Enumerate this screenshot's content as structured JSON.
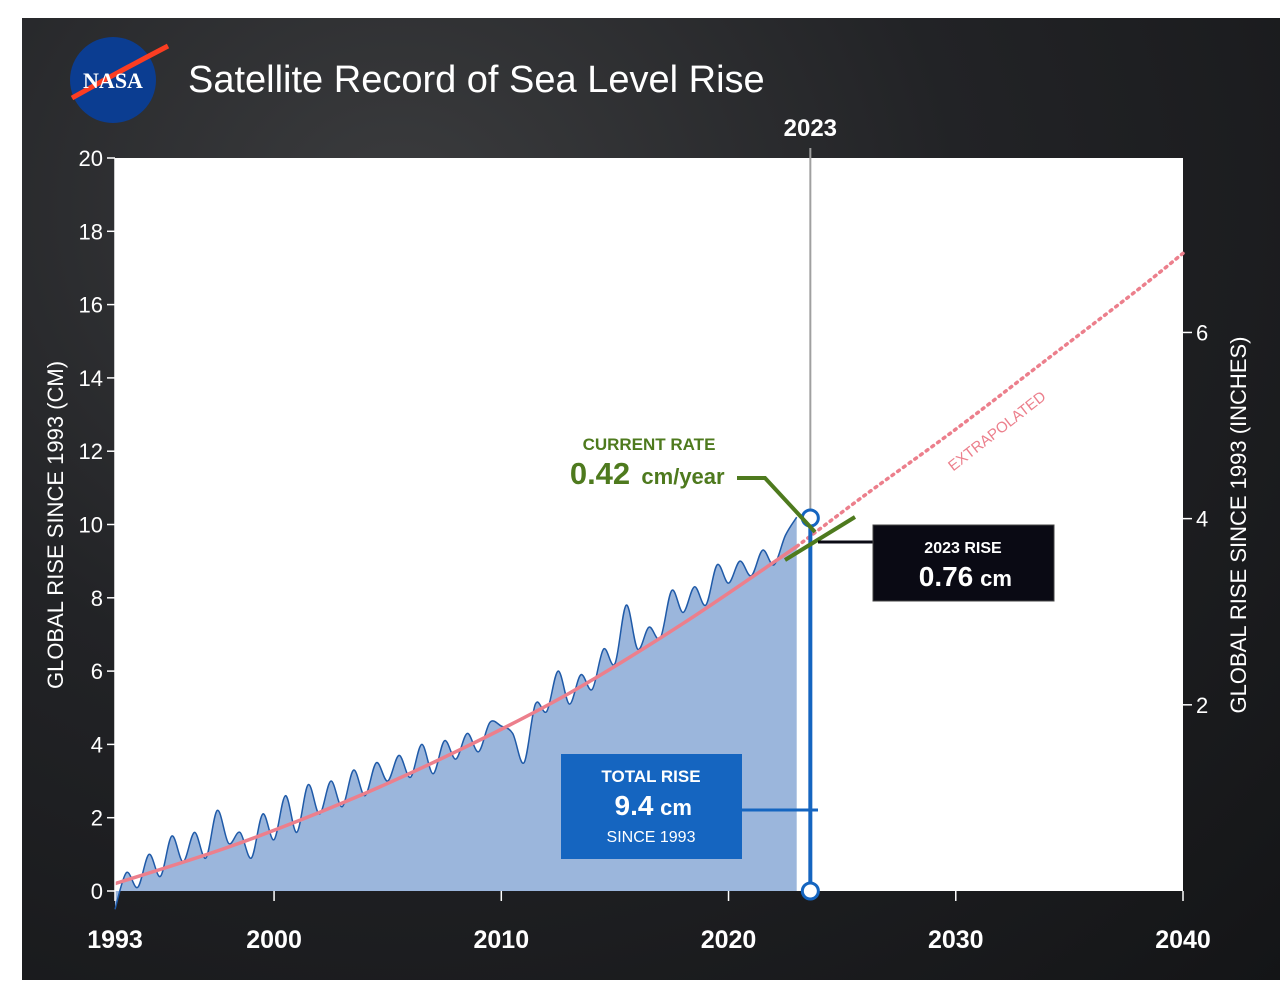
{
  "header": {
    "logo_text": "NASA",
    "title": "Satellite Record of Sea Level Rise"
  },
  "colors": {
    "background": "#1c1d1f",
    "plot_area": "#ffffff",
    "observed_fill": "#9bb6dc",
    "observed_line": "#1f5aa8",
    "trend_line": "#ec7f8c",
    "rate_line": "#4e7a1e",
    "total_box": "#1565c0",
    "rise_box": "#0a0a14",
    "marker_line": "#999999"
  },
  "chart_data": {
    "type": "area",
    "title": "Satellite Record of Sea Level Rise",
    "xlabel": "",
    "ylabel": "GLOBAL RISE SINCE 1993 (CM)",
    "ylabel_right": "GLOBAL RISE SINCE 1993 (INCHES)",
    "xlim": [
      1993,
      2040
    ],
    "ylim": [
      0,
      20
    ],
    "ylim_right_inches": [
      0,
      7.874
    ],
    "x_ticks": [
      "1993",
      "2000",
      "2010",
      "2020",
      "2030",
      "2040"
    ],
    "x_tick_values": [
      1993,
      2000,
      2010,
      2020,
      2030,
      2040
    ],
    "y_ticks": [
      "0",
      "2",
      "4",
      "6",
      "8",
      "10",
      "12",
      "14",
      "16",
      "18",
      "20"
    ],
    "y_tick_values": [
      0,
      2,
      4,
      6,
      8,
      10,
      12,
      14,
      16,
      18,
      20
    ],
    "y_right_ticks": [
      "2",
      "4",
      "6"
    ],
    "y_right_tick_values": [
      2,
      4,
      6
    ],
    "grid": false,
    "marker_year": 2023,
    "marker_label": "2023",
    "series": [
      {
        "name": "",
        "type": "area",
        "x": [
          1993.0,
          1993.5,
          1994.0,
          1994.5,
          1995.0,
          1995.5,
          1996.0,
          1996.5,
          1997.0,
          1997.5,
          1998.0,
          1998.5,
          1999.0,
          1999.5,
          2000.0,
          2000.5,
          2001.0,
          2001.5,
          2002.0,
          2002.5,
          2003.0,
          2003.5,
          2004.0,
          2004.5,
          2005.0,
          2005.5,
          2006.0,
          2006.5,
          2007.0,
          2007.5,
          2008.0,
          2008.5,
          2009.0,
          2009.5,
          2010.0,
          2010.5,
          2011.0,
          2011.5,
          2012.0,
          2012.5,
          2013.0,
          2013.5,
          2014.0,
          2014.5,
          2015.0,
          2015.5,
          2016.0,
          2016.5,
          2017.0,
          2017.5,
          2018.0,
          2018.5,
          2019.0,
          2019.5,
          2020.0,
          2020.5,
          2021.0,
          2021.5,
          2022.0,
          2022.5,
          2023.0
        ],
        "y": [
          -0.5,
          0.5,
          0.1,
          1.0,
          0.4,
          1.5,
          0.8,
          1.6,
          0.9,
          2.2,
          1.3,
          1.6,
          0.9,
          2.1,
          1.4,
          2.6,
          1.6,
          2.9,
          2.1,
          3.0,
          2.3,
          3.3,
          2.6,
          3.5,
          3.0,
          3.7,
          3.1,
          4.0,
          3.2,
          4.1,
          3.6,
          4.3,
          3.8,
          4.6,
          4.5,
          4.3,
          3.5,
          5.1,
          4.9,
          6.0,
          5.1,
          5.9,
          5.5,
          6.6,
          6.2,
          7.8,
          6.6,
          7.2,
          6.9,
          8.2,
          7.6,
          8.3,
          7.8,
          8.9,
          8.4,
          9.0,
          8.6,
          9.3,
          8.9,
          9.7,
          10.2
        ]
      },
      {
        "name": "",
        "type": "line",
        "x": [
          1993,
          1998,
          2003,
          2008,
          2013,
          2018,
          2023
        ],
        "y": [
          0.2,
          1.2,
          2.4,
          3.8,
          5.4,
          7.3,
          9.4
        ]
      },
      {
        "name": "",
        "label": "EXTRAPOLATED",
        "type": "line-dotted",
        "x": [
          2023,
          2026,
          2030,
          2034,
          2038,
          2040
        ],
        "y": [
          9.4,
          10.8,
          12.6,
          14.5,
          16.4,
          17.4
        ]
      }
    ],
    "annotations": {
      "current_rate_title": "CURRENT RATE",
      "current_rate_value": "0.42",
      "current_rate_unit": "cm/year",
      "rise_2023_title": "2023 RISE",
      "rise_2023_value": "0.76",
      "rise_2023_unit": "cm",
      "total_title": "TOTAL RISE",
      "total_value": "9.4",
      "total_unit": "cm",
      "total_sub": "SINCE 1993",
      "extrapolated_label": "EXTRAPOLATED"
    }
  }
}
